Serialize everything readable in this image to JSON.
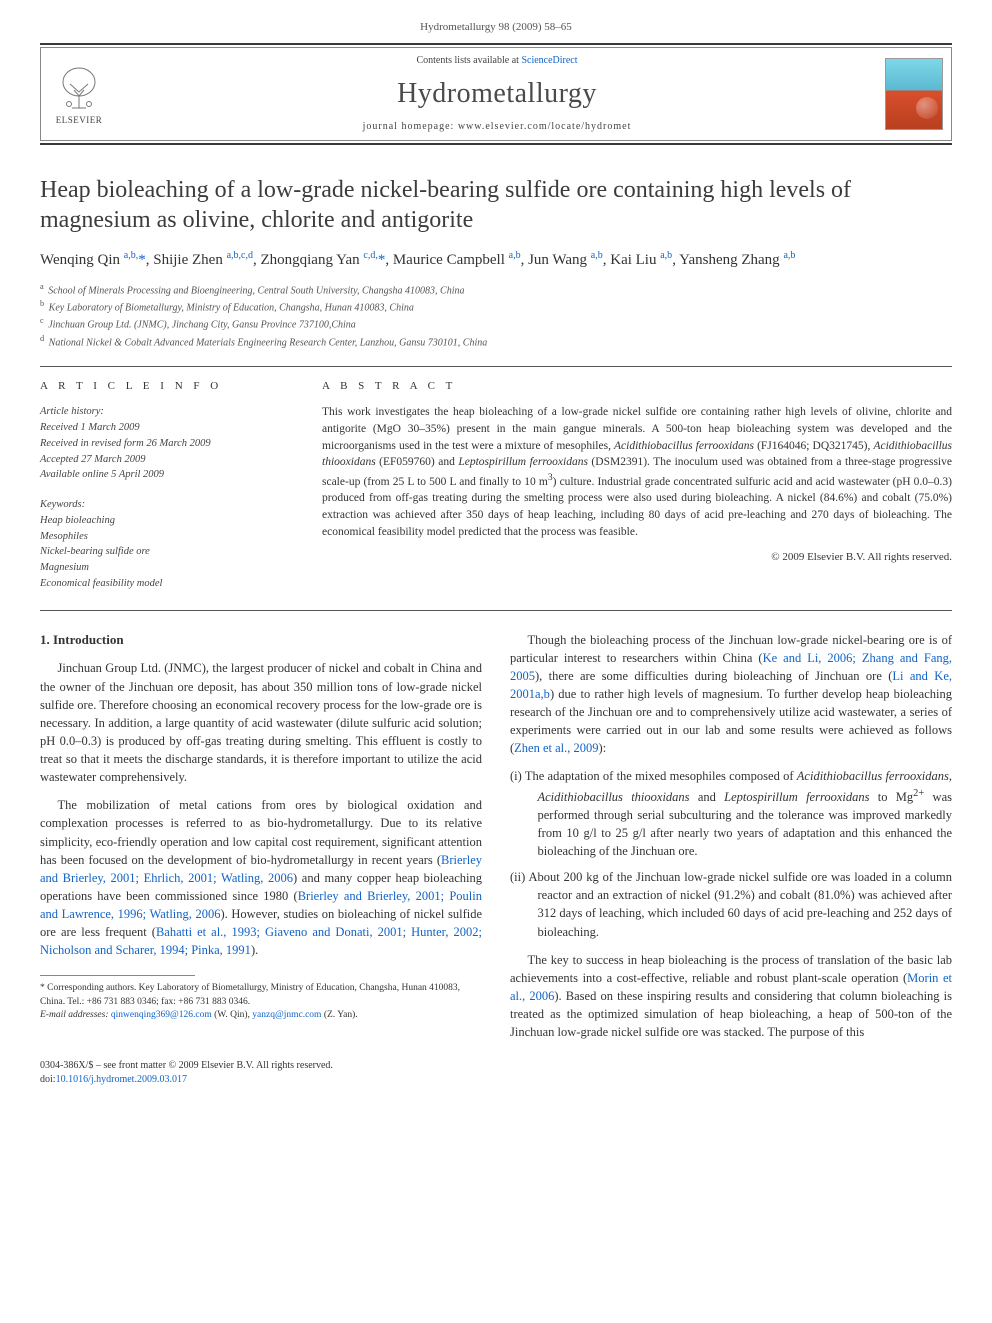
{
  "journal_ref": "Hydrometallurgy 98 (2009) 58–65",
  "header": {
    "contents_prefix": "Contents lists available at ",
    "contents_link": "ScienceDirect",
    "journal_name": "Hydrometallurgy",
    "homepage_prefix": "journal homepage: ",
    "homepage_url": "www.elsevier.com/locate/hydromet",
    "elsevier": "ELSEVIER"
  },
  "title": "Heap bioleaching of a low-grade nickel-bearing sulfide ore containing high levels of magnesium as olivine, chlorite and antigorite",
  "authors_html": "Wenqing Qin <sup class='sup-link'>a,b,</sup><span class='star'>*</span>, Shijie Zhen <sup class='sup-link'>a,b,c,d</sup>, Zhongqiang Yan <sup class='sup-link'>c,d,</sup><span class='star'>*</span>, Maurice Campbell <sup class='sup-link'>a,b</sup>, Jun Wang <sup class='sup-link'>a,b</sup>, Kai Liu <sup class='sup-link'>a,b</sup>, Yansheng Zhang <sup class='sup-link'>a,b</sup>",
  "affiliations": [
    {
      "key": "a",
      "text": "School of Minerals Processing and Bioengineering, Central South University, Changsha 410083, China"
    },
    {
      "key": "b",
      "text": "Key Laboratory of Biometallurgy, Ministry of Education, Changsha, Hunan 410083, China"
    },
    {
      "key": "c",
      "text": "Jinchuan Group Ltd. (JNMC), Jinchang City, Gansu Province 737100,China"
    },
    {
      "key": "d",
      "text": "National Nickel & Cobalt Advanced Materials Engineering Research Center, Lanzhou, Gansu 730101, China"
    }
  ],
  "article_info_label": "A R T I C L E   I N F O",
  "abstract_label": "A B S T R A C T",
  "history": {
    "head": "Article history:",
    "received": "Received 1 March 2009",
    "revised": "Received in revised form 26 March 2009",
    "accepted": "Accepted 27 March 2009",
    "online": "Available online 5 April 2009"
  },
  "keywords_head": "Keywords:",
  "keywords": [
    "Heap bioleaching",
    "Mesophiles",
    "Nickel-bearing sulfide ore",
    "Magnesium",
    "Economical feasibility model"
  ],
  "abstract_html": "This work investigates the heap bioleaching of a low-grade nickel sulfide ore containing rather high levels of olivine, chlorite and antigorite (MgO 30–35%) present in the main gangue minerals. A 500-ton heap bioleaching system was developed and the microorganisms used in the test were a mixture of mesophiles, <i>Acidithiobacillus ferrooxidans</i> (FJ164046; DQ321745), <i>Acidithiobacillus thiooxidans</i> (EF059760) and <i>Leptospirillum ferrooxidans</i> (DSM2391). The inoculum used was obtained from a three-stage progressive scale-up (from 25 L to 500 L and finally to 10 m<sup>3</sup>) culture. Industrial grade concentrated sulfuric acid and acid wastewater (pH 0.0–0.3) produced from off-gas treating during the smelting process were also used during bioleaching. A nickel (84.6%) and cobalt (75.0%) extraction was achieved after 350 days of heap leaching, including 80 days of acid pre-leaching and 270 days of bioleaching. The economical feasibility model predicted that the process was feasible.",
  "copyright": "© 2009 Elsevier B.V. All rights reserved.",
  "intro_heading": "1. Introduction",
  "intro_p1": "Jinchuan Group Ltd. (JNMC), the largest producer of nickel and cobalt in China and the owner of the Jinchuan ore deposit, has about 350 million tons of low-grade nickel sulfide ore. Therefore choosing an economical recovery process for the low-grade ore is necessary. In addition, a large quantity of acid wastewater (dilute sulfuric acid solution; pH 0.0–0.3) is produced by off-gas treating during smelting. This effluent is costly to treat so that it meets the discharge standards, it is therefore important to utilize the acid wastewater comprehensively.",
  "intro_p2_html": "The mobilization of metal cations from ores by biological oxidation and complexation processes is referred to as bio-hydrometallurgy. Due to its relative simplicity, eco-friendly operation and low capital cost requirement, significant attention has been focused on the development of bio-hydrometallurgy in recent years (<a href='#'>Brierley and Brierley, 2001; Ehrlich, 2001; Watling, 2006</a>) and many copper heap bioleaching operations have been commissioned since 1980 (<a href='#'>Brierley and Brierley, 2001; Poulin and Lawrence, 1996; Watling, 2006</a>). However, studies on bioleaching of nickel sulfide ore are less frequent (<a href='#'>Bahatti et al., 1993; Giaveno and Donati, 2001; Hunter, 2002; Nicholson and Scharer, 1994; Pinka, 1991</a>).",
  "col2_p1_html": "Though the bioleaching process of the Jinchuan low-grade nickel-bearing ore is of particular interest to researchers within China (<a href='#'>Ke and Li, 2006; Zhang and Fang, 2005</a>), there are some difficulties during bioleaching of Jinchuan ore (<a href='#'>Li and Ke, 2001a,b</a>) due to rather high levels of magnesium. To further develop heap bioleaching research of the Jinchuan ore and to comprehensively utilize acid wastewater, a series of experiments were carried out in our lab and some results were achieved as follows (<a href='#'>Zhen et al., 2009</a>):",
  "list_items": [
    "(i)  The adaptation of the mixed mesophiles composed of <i>Acidithiobacillus ferrooxidans</i>, <i>Acidithiobacillus thiooxidans</i> and <i>Leptospirillum ferrooxidans</i> to Mg<sup>2+</sup> was performed through serial subculturing and the tolerance was improved markedly from 10 g/l to 25 g/l after nearly two years of adaptation and this enhanced the bioleaching of the Jinchuan ore.",
    "(ii) About 200 kg of the Jinchuan low-grade nickel sulfide ore was loaded in a column reactor and an extraction of nickel (91.2%) and cobalt (81.0%) was achieved after 312 days of leaching, which included 60 days of acid pre-leaching and 252 days of bioleaching."
  ],
  "col2_p2_html": "The key to success in heap bioleaching is the process of translation of the basic lab achievements into a cost-effective, reliable and robust plant-scale operation (<a href='#'>Morin et al., 2006</a>). Based on these inspiring results and considering that column bioleaching is treated as the optimized simulation of heap bioleaching, a heap of 500-ton of the Jinchuan low-grade nickel sulfide ore was stacked. The purpose of this",
  "footnote": {
    "star": "* Corresponding authors. Key Laboratory of Biometallurgy, Ministry of Education, Changsha, Hunan 410083, China. Tel.: +86 731 883 0346; fax: +86 731 883 0346.",
    "emails_label": "E-mail addresses:",
    "email1": "qinwenqing369@126.com",
    "email1_who": " (W. Qin), ",
    "email2": "yanzq@jnmc.com",
    "email2_who": " (Z. Yan)."
  },
  "footer": {
    "line1": "0304-386X/$ – see front matter © 2009 Elsevier B.V. All rights reserved.",
    "doi_prefix": "doi:",
    "doi": "10.1016/j.hydromet.2009.03.017"
  },
  "colors": {
    "link": "#1163c8",
    "rule": "#3a3a3a",
    "text": "#333333"
  }
}
